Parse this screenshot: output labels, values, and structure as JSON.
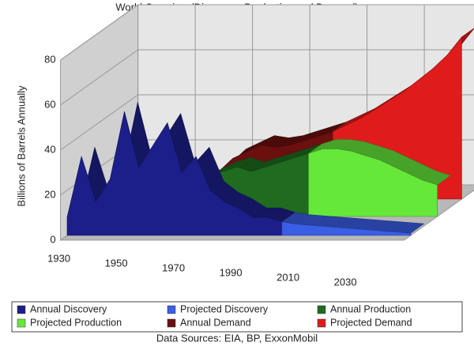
{
  "chart_data": {
    "type": "area3d",
    "title": "World Overview (Discovery, Production and Demand)",
    "y_label": "Billions of Barrels Annually",
    "footnote": "Data Sources: EIA, BP, ExxonMobil",
    "x": [
      1930,
      1935,
      1940,
      1945,
      1950,
      1955,
      1960,
      1965,
      1970,
      1975,
      1980,
      1985,
      1990,
      1995,
      2000,
      2005,
      2010,
      2015,
      2020,
      2025,
      2030,
      2035,
      2040,
      2045,
      2050
    ],
    "xlim": [
      1930,
      2050
    ],
    "xticks": [
      1930,
      1950,
      1970,
      1990,
      2010,
      2030
    ],
    "ylim": [
      0,
      80
    ],
    "yticks": [
      0,
      20,
      40,
      60,
      80
    ],
    "grid": true,
    "series": [
      {
        "name": "Annual Discovery",
        "color": "#1c1f8a",
        "values": [
          8,
          35,
          15,
          25,
          55,
          30,
          40,
          50,
          28,
          35,
          20,
          15,
          12,
          8,
          8,
          6,
          null,
          null,
          null,
          null,
          null,
          null,
          null,
          null,
          null
        ]
      },
      {
        "name": "Projected Discovery",
        "color": "#3b5ee6",
        "values": [
          null,
          null,
          null,
          null,
          null,
          null,
          null,
          null,
          null,
          null,
          null,
          null,
          null,
          null,
          null,
          6,
          5,
          4.5,
          4,
          3.5,
          3,
          2.5,
          2,
          1.5,
          1
        ]
      },
      {
        "name": "Annual Production",
        "color": "#1f6b1f",
        "values": [
          1,
          1.5,
          2,
          2.5,
          4,
          6,
          8,
          12,
          17,
          20,
          22,
          20,
          22,
          24,
          26,
          28,
          null,
          null,
          null,
          null,
          null,
          null,
          null,
          null,
          null
        ]
      },
      {
        "name": "Projected Production",
        "color": "#66e83a",
        "values": [
          null,
          null,
          null,
          null,
          null,
          null,
          null,
          null,
          null,
          null,
          null,
          null,
          null,
          null,
          null,
          28,
          30,
          30,
          29,
          27,
          25,
          22,
          19,
          16,
          14
        ]
      },
      {
        "name": "Annual Demand",
        "color": "#6b0f0f",
        "values": [
          1,
          1.5,
          2,
          2.5,
          4,
          6,
          8,
          12,
          18,
          21,
          24,
          23,
          24,
          26,
          28,
          30,
          null,
          null,
          null,
          null,
          null,
          null,
          null,
          null,
          null
        ]
      },
      {
        "name": "Projected Demand",
        "color": "#e01b1b",
        "values": [
          null,
          null,
          null,
          null,
          null,
          null,
          null,
          null,
          null,
          null,
          null,
          null,
          null,
          null,
          null,
          30,
          33,
          36,
          40,
          44,
          48,
          53,
          58,
          64,
          72
        ]
      }
    ]
  }
}
